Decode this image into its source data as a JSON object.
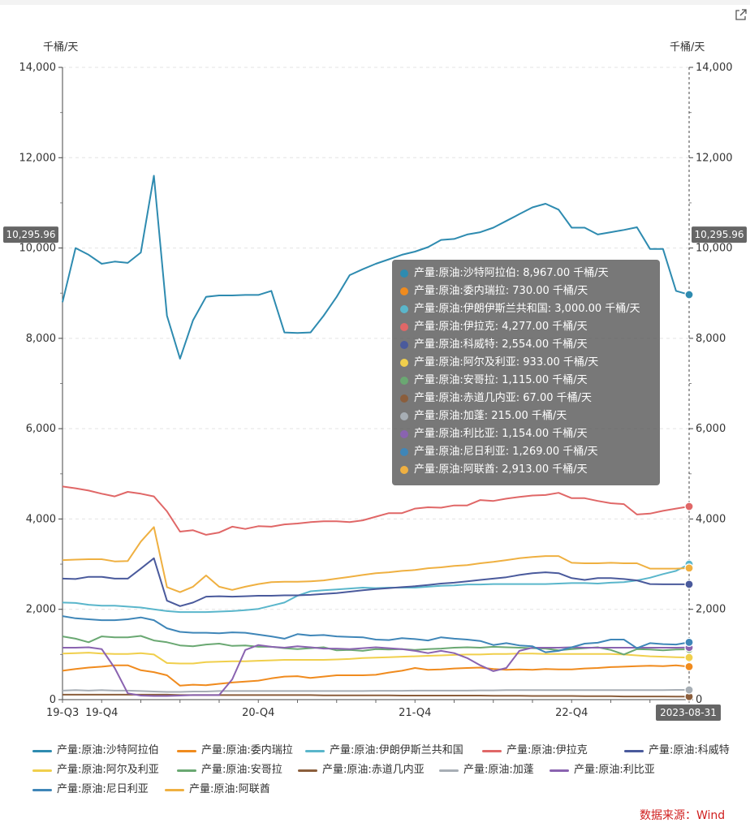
{
  "chart_data": {
    "type": "line",
    "unit_left": "千桶/天",
    "unit_right": "千桶/天",
    "ylim": [
      0,
      14000
    ],
    "yticks": [
      "0",
      "2,000",
      "4,000",
      "6,000",
      "8,000",
      "10,000",
      "12,000",
      "14,000"
    ],
    "ytick_values": [
      0,
      2000,
      4000,
      6000,
      8000,
      10000,
      12000,
      14000
    ],
    "xtick_labels": [
      "19-Q3",
      "19-Q4",
      "20-Q4",
      "21-Q4",
      "22-Q4"
    ],
    "xtick_index": [
      0,
      3,
      15,
      27,
      39
    ],
    "grid": true,
    "crosshair_value": "10,295.96",
    "crosshair_date": "2023-08-31",
    "legend_placement": "bottom",
    "series": [
      {
        "name": "产量:原油:沙特阿拉伯",
        "color": "#2e8bb0",
        "values": [
          8800,
          10000,
          9850,
          9650,
          9700,
          9670,
          9900,
          11600,
          8500,
          7550,
          8400,
          8920,
          8950,
          8950,
          8960,
          8960,
          9050,
          8130,
          8120,
          8130,
          8500,
          8920,
          9400,
          9530,
          9650,
          9750,
          9850,
          9920,
          10020,
          10180,
          10200,
          10300,
          10350,
          10450,
          10600,
          10750,
          10900,
          10980,
          10850,
          10450,
          10450,
          10300,
          10350,
          10400,
          10460,
          9980,
          9980,
          9050,
          8967
        ]
      },
      {
        "name": "产量:原油:委内瑞拉",
        "color": "#f08b1e",
        "values": [
          640,
          680,
          710,
          730,
          760,
          760,
          650,
          610,
          540,
          310,
          330,
          320,
          350,
          380,
          400,
          420,
          470,
          510,
          520,
          480,
          510,
          540,
          540,
          540,
          550,
          600,
          640,
          700,
          660,
          670,
          690,
          700,
          710,
          680,
          660,
          670,
          660,
          680,
          670,
          670,
          690,
          700,
          720,
          730,
          740,
          750,
          740,
          760,
          730
        ]
      },
      {
        "name": "产量:原油:伊朗伊斯兰共和国",
        "color": "#5ab6cb",
        "values": [
          2150,
          2140,
          2100,
          2080,
          2080,
          2060,
          2040,
          2000,
          1960,
          1940,
          1940,
          1940,
          1950,
          1960,
          1980,
          2010,
          2080,
          2150,
          2300,
          2400,
          2420,
          2440,
          2460,
          2480,
          2470,
          2480,
          2480,
          2480,
          2500,
          2520,
          2530,
          2550,
          2550,
          2560,
          2560,
          2560,
          2560,
          2560,
          2570,
          2580,
          2580,
          2570,
          2590,
          2600,
          2640,
          2700,
          2780,
          2850,
          3000
        ]
      },
      {
        "name": "产量:原油:伊拉克",
        "color": "#e06767",
        "values": [
          4720,
          4680,
          4630,
          4560,
          4500,
          4600,
          4560,
          4500,
          4170,
          3720,
          3750,
          3650,
          3700,
          3830,
          3780,
          3840,
          3830,
          3880,
          3900,
          3930,
          3950,
          3950,
          3930,
          3970,
          4050,
          4130,
          4130,
          4230,
          4260,
          4250,
          4300,
          4300,
          4420,
          4400,
          4450,
          4490,
          4520,
          4530,
          4580,
          4460,
          4460,
          4400,
          4350,
          4330,
          4100,
          4120,
          4180,
          4230,
          4277
        ]
      },
      {
        "name": "产量:原油:科威特",
        "color": "#4a5a9c",
        "values": [
          2680,
          2670,
          2720,
          2720,
          2680,
          2680,
          2900,
          3130,
          2190,
          2070,
          2150,
          2280,
          2290,
          2280,
          2290,
          2300,
          2300,
          2310,
          2310,
          2320,
          2340,
          2360,
          2390,
          2420,
          2450,
          2470,
          2490,
          2510,
          2540,
          2570,
          2590,
          2620,
          2650,
          2680,
          2710,
          2760,
          2800,
          2820,
          2800,
          2690,
          2650,
          2690,
          2690,
          2670,
          2640,
          2560,
          2554,
          2554,
          2554
        ]
      },
      {
        "name": "产量:原油:阿尔及利亚",
        "color": "#f0cf4c",
        "values": [
          1020,
          1030,
          1040,
          1020,
          1010,
          1010,
          1030,
          1000,
          810,
          800,
          800,
          830,
          840,
          850,
          850,
          860,
          870,
          880,
          880,
          880,
          880,
          890,
          900,
          920,
          930,
          940,
          950,
          960,
          970,
          980,
          990,
          1000,
          1000,
          1010,
          1010,
          1020,
          1020,
          1010,
          1010,
          1010,
          1010,
          1010,
          1010,
          1000,
          980,
          960,
          950,
          940,
          933
        ]
      },
      {
        "name": "产量:原油:安哥拉",
        "color": "#6aa872",
        "values": [
          1400,
          1350,
          1270,
          1400,
          1380,
          1380,
          1410,
          1310,
          1270,
          1200,
          1180,
          1220,
          1240,
          1190,
          1200,
          1170,
          1170,
          1140,
          1120,
          1140,
          1160,
          1090,
          1100,
          1080,
          1120,
          1110,
          1120,
          1100,
          1120,
          1130,
          1150,
          1160,
          1150,
          1170,
          1160,
          1150,
          1140,
          1130,
          1090,
          1120,
          1140,
          1160,
          1100,
          1000,
          1120,
          1110,
          1090,
          1110,
          1115
        ]
      },
      {
        "name": "产量:原油:赤道几内亚",
        "color": "#8b5e3c",
        "values": [
          110,
          110,
          110,
          110,
          110,
          110,
          110,
          110,
          110,
          100,
          100,
          100,
          100,
          100,
          100,
          100,
          100,
          100,
          100,
          100,
          95,
          95,
          95,
          95,
          95,
          95,
          90,
          90,
          90,
          90,
          90,
          90,
          90,
          85,
          85,
          85,
          80,
          80,
          80,
          80,
          75,
          75,
          75,
          70,
          70,
          70,
          70,
          67,
          67
        ]
      },
      {
        "name": "产量:原油:加蓬",
        "color": "#a7aeb5",
        "values": [
          200,
          210,
          200,
          210,
          200,
          200,
          190,
          180,
          170,
          170,
          180,
          180,
          190,
          190,
          190,
          190,
          190,
          190,
          190,
          190,
          190,
          190,
          190,
          190,
          195,
          195,
          195,
          200,
          200,
          200,
          200,
          200,
          205,
          205,
          210,
          210,
          210,
          210,
          210,
          210,
          210,
          210,
          210,
          210,
          210,
          210,
          210,
          215,
          215
        ]
      },
      {
        "name": "产量:原油:利比亚",
        "color": "#8a63b0",
        "values": [
          1150,
          1150,
          1160,
          1120,
          700,
          140,
          90,
          80,
          80,
          90,
          100,
          100,
          100,
          450,
          1100,
          1210,
          1170,
          1150,
          1180,
          1160,
          1130,
          1130,
          1120,
          1140,
          1160,
          1140,
          1120,
          1080,
          1030,
          1080,
          1030,
          920,
          760,
          630,
          700,
          1080,
          1150,
          1150,
          1150,
          1160,
          1150,
          1150,
          1150,
          1150,
          1150,
          1150,
          1150,
          1150,
          1154
        ]
      },
      {
        "name": "产量:原油:尼日利亚",
        "color": "#3f86b8",
        "values": [
          1850,
          1800,
          1780,
          1760,
          1760,
          1780,
          1820,
          1760,
          1580,
          1500,
          1480,
          1480,
          1470,
          1490,
          1480,
          1440,
          1400,
          1350,
          1450,
          1420,
          1430,
          1400,
          1390,
          1380,
          1330,
          1320,
          1360,
          1340,
          1310,
          1380,
          1350,
          1330,
          1300,
          1210,
          1250,
          1200,
          1180,
          1050,
          1080,
          1160,
          1240,
          1260,
          1330,
          1330,
          1140,
          1250,
          1230,
          1220,
          1269
        ]
      },
      {
        "name": "产量:原油:阿联酋",
        "color": "#efb041",
        "values": [
          3090,
          3100,
          3110,
          3110,
          3060,
          3070,
          3500,
          3820,
          2490,
          2380,
          2500,
          2750,
          2500,
          2430,
          2500,
          2560,
          2600,
          2610,
          2610,
          2620,
          2640,
          2680,
          2720,
          2760,
          2800,
          2820,
          2850,
          2870,
          2910,
          2930,
          2960,
          2980,
          3020,
          3050,
          3090,
          3130,
          3160,
          3180,
          3180,
          3030,
          3020,
          3020,
          3030,
          3020,
          3020,
          2900,
          2900,
          2900,
          2913
        ]
      }
    ]
  },
  "tooltip": {
    "rows": [
      {
        "label": "产量:原油:沙特阿拉伯: 8,967.00  千桶/天",
        "color": "#2e8bb0"
      },
      {
        "label": "产量:原油:委内瑞拉: 730.00  千桶/天",
        "color": "#f08b1e"
      },
      {
        "label": "产量:原油:伊朗伊斯兰共和国: 3,000.00  千桶/天",
        "color": "#5ab6cb"
      },
      {
        "label": "产量:原油:伊拉克: 4,277.00  千桶/天",
        "color": "#e06767"
      },
      {
        "label": "产量:原油:科威特: 2,554.00  千桶/天",
        "color": "#4a5a9c"
      },
      {
        "label": "产量:原油:阿尔及利亚: 933.00  千桶/天",
        "color": "#f0cf4c"
      },
      {
        "label": "产量:原油:安哥拉: 1,115.00  千桶/天",
        "color": "#6aa872"
      },
      {
        "label": "产量:原油:赤道几内亚: 67.00  千桶/天",
        "color": "#8b5e3c"
      },
      {
        "label": "产量:原油:加蓬: 215.00  千桶/天",
        "color": "#a7aeb5"
      },
      {
        "label": "产量:原油:利比亚: 1,154.00  千桶/天",
        "color": "#8a63b0"
      },
      {
        "label": "产量:原油:尼日利亚: 1,269.00  千桶/天",
        "color": "#3f86b8"
      },
      {
        "label": "产量:原油:阿联酋: 2,913.00  千桶/天",
        "color": "#efb041"
      }
    ]
  },
  "source_text": "数据来源：Wind",
  "export_icon": "external-link-icon"
}
